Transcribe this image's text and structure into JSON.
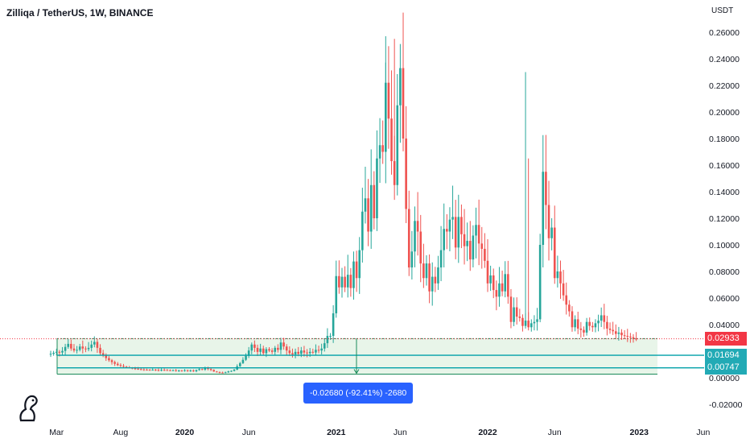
{
  "title": "Zilliqa / TetherUS, 1W, BINANCE",
  "colors": {
    "up": "#26a69a",
    "down": "#ef5350",
    "axis_text": "#131722",
    "measure": "#2962ff",
    "zone_fill": "#e8f5e9",
    "zone_line": "#1b8a5a",
    "level_line": "#00a0a8",
    "last_price": "#f23645",
    "level_tag": "#22aab5"
  },
  "logo_icon": "tradingview-logo-icon",
  "price_tags": {
    "last": "0.02933",
    "level1": "0.01694",
    "level2": "0.00747"
  },
  "measure_label": "-0.02680 (-92.41%) -2680",
  "chart_data": {
    "type": "candlestick",
    "title": "Zilliqa / TetherUS, 1W, BINANCE",
    "y_unit": "USDT",
    "ylim": [
      -0.025,
      0.27
    ],
    "y_ticks": [
      "0.26000",
      "0.24000",
      "0.22000",
      "0.20000",
      "0.18000",
      "0.16000",
      "0.14000",
      "0.12000",
      "0.10000",
      "0.08000",
      "0.06000",
      "0.04000",
      "0.02000",
      "0.00000",
      "-0.02000"
    ],
    "y_tick_values": [
      0.26,
      0.24,
      0.22,
      0.2,
      0.18,
      0.16,
      0.14,
      0.12,
      0.1,
      0.08,
      0.06,
      0.04,
      0.02,
      0.0,
      -0.02
    ],
    "x_ticks": [
      {
        "label": "Mar",
        "week": 2,
        "bold": false
      },
      {
        "label": "Aug",
        "week": 24,
        "bold": false
      },
      {
        "label": "2020",
        "week": 46,
        "bold": true
      },
      {
        "label": "Jun",
        "week": 68,
        "bold": false
      },
      {
        "label": "2021",
        "week": 98,
        "bold": true
      },
      {
        "label": "Jun",
        "week": 120,
        "bold": false
      },
      {
        "label": "2022",
        "week": 150,
        "bold": true
      },
      {
        "label": "Jun",
        "week": 173,
        "bold": false
      },
      {
        "label": "2023",
        "week": 202,
        "bold": true
      },
      {
        "label": "Jun",
        "week": 224,
        "bold": false
      }
    ],
    "grid": false,
    "candles_close": [
      0.018,
      0.0188,
      0.0195,
      0.019,
      0.0202,
      0.0232,
      0.0255,
      0.022,
      0.0205,
      0.021,
      0.0235,
      0.022,
      0.0215,
      0.0225,
      0.025,
      0.027,
      0.0225,
      0.0185,
      0.017,
      0.0148,
      0.0132,
      0.0118,
      0.0105,
      0.0095,
      0.0089,
      0.0083,
      0.0079,
      0.0075,
      0.0071,
      0.0068,
      0.0065,
      0.0063,
      0.0061,
      0.006,
      0.0058,
      0.0061,
      0.0059,
      0.0057,
      0.006,
      0.0058,
      0.0057,
      0.0055,
      0.0057,
      0.0053,
      0.0055,
      0.0051,
      0.0057,
      0.0053,
      0.0055,
      0.0049,
      0.0058,
      0.0065,
      0.0061,
      0.0072,
      0.0066,
      0.0059,
      0.0047,
      0.0042,
      0.0039,
      0.0037,
      0.0041,
      0.0048,
      0.0052,
      0.0061,
      0.0086,
      0.011,
      0.0135,
      0.0165,
      0.0205,
      0.025,
      0.0225,
      0.0195,
      0.022,
      0.0185,
      0.0215,
      0.0205,
      0.0195,
      0.0225,
      0.021,
      0.0265,
      0.0235,
      0.0205,
      0.0185,
      0.0175,
      0.0195,
      0.018,
      0.0205,
      0.019,
      0.0185,
      0.0195,
      0.019,
      0.021,
      0.0205,
      0.022,
      0.026,
      0.0315,
      0.0315,
      0.0485,
      0.0765,
      0.068,
      0.076,
      0.068,
      0.0775,
      0.0675,
      0.0875,
      0.075,
      0.096,
      0.125,
      0.135,
      0.11,
      0.145,
      0.12,
      0.165,
      0.175,
      0.17,
      0.222,
      0.195,
      0.163,
      0.145,
      0.205,
      0.233,
      0.18,
      0.127,
      0.083,
      0.095,
      0.118,
      0.11,
      0.086,
      0.075,
      0.086,
      0.065,
      0.076,
      0.071,
      0.083,
      0.096,
      0.112,
      0.11,
      0.119,
      0.121,
      0.098,
      0.121,
      0.108,
      0.099,
      0.103,
      0.089,
      0.107,
      0.115,
      0.101,
      0.097,
      0.088,
      0.071,
      0.077,
      0.066,
      0.061,
      0.071,
      0.065,
      0.078,
      0.061,
      0.042,
      0.053,
      0.046,
      0.045,
      0.039,
      0.043,
      0.038,
      0.041,
      0.042,
      0.044,
      0.1,
      0.155,
      0.13,
      0.105,
      0.113,
      0.075,
      0.08,
      0.071,
      0.062,
      0.055,
      0.05,
      0.038,
      0.044,
      0.037,
      0.036,
      0.034,
      0.042,
      0.039,
      0.038,
      0.041,
      0.043,
      0.047,
      0.042,
      0.037,
      0.036,
      0.035,
      0.033,
      0.034,
      0.032,
      0.0315,
      0.031,
      0.0305,
      0.0295,
      0.02933
    ]
  }
}
